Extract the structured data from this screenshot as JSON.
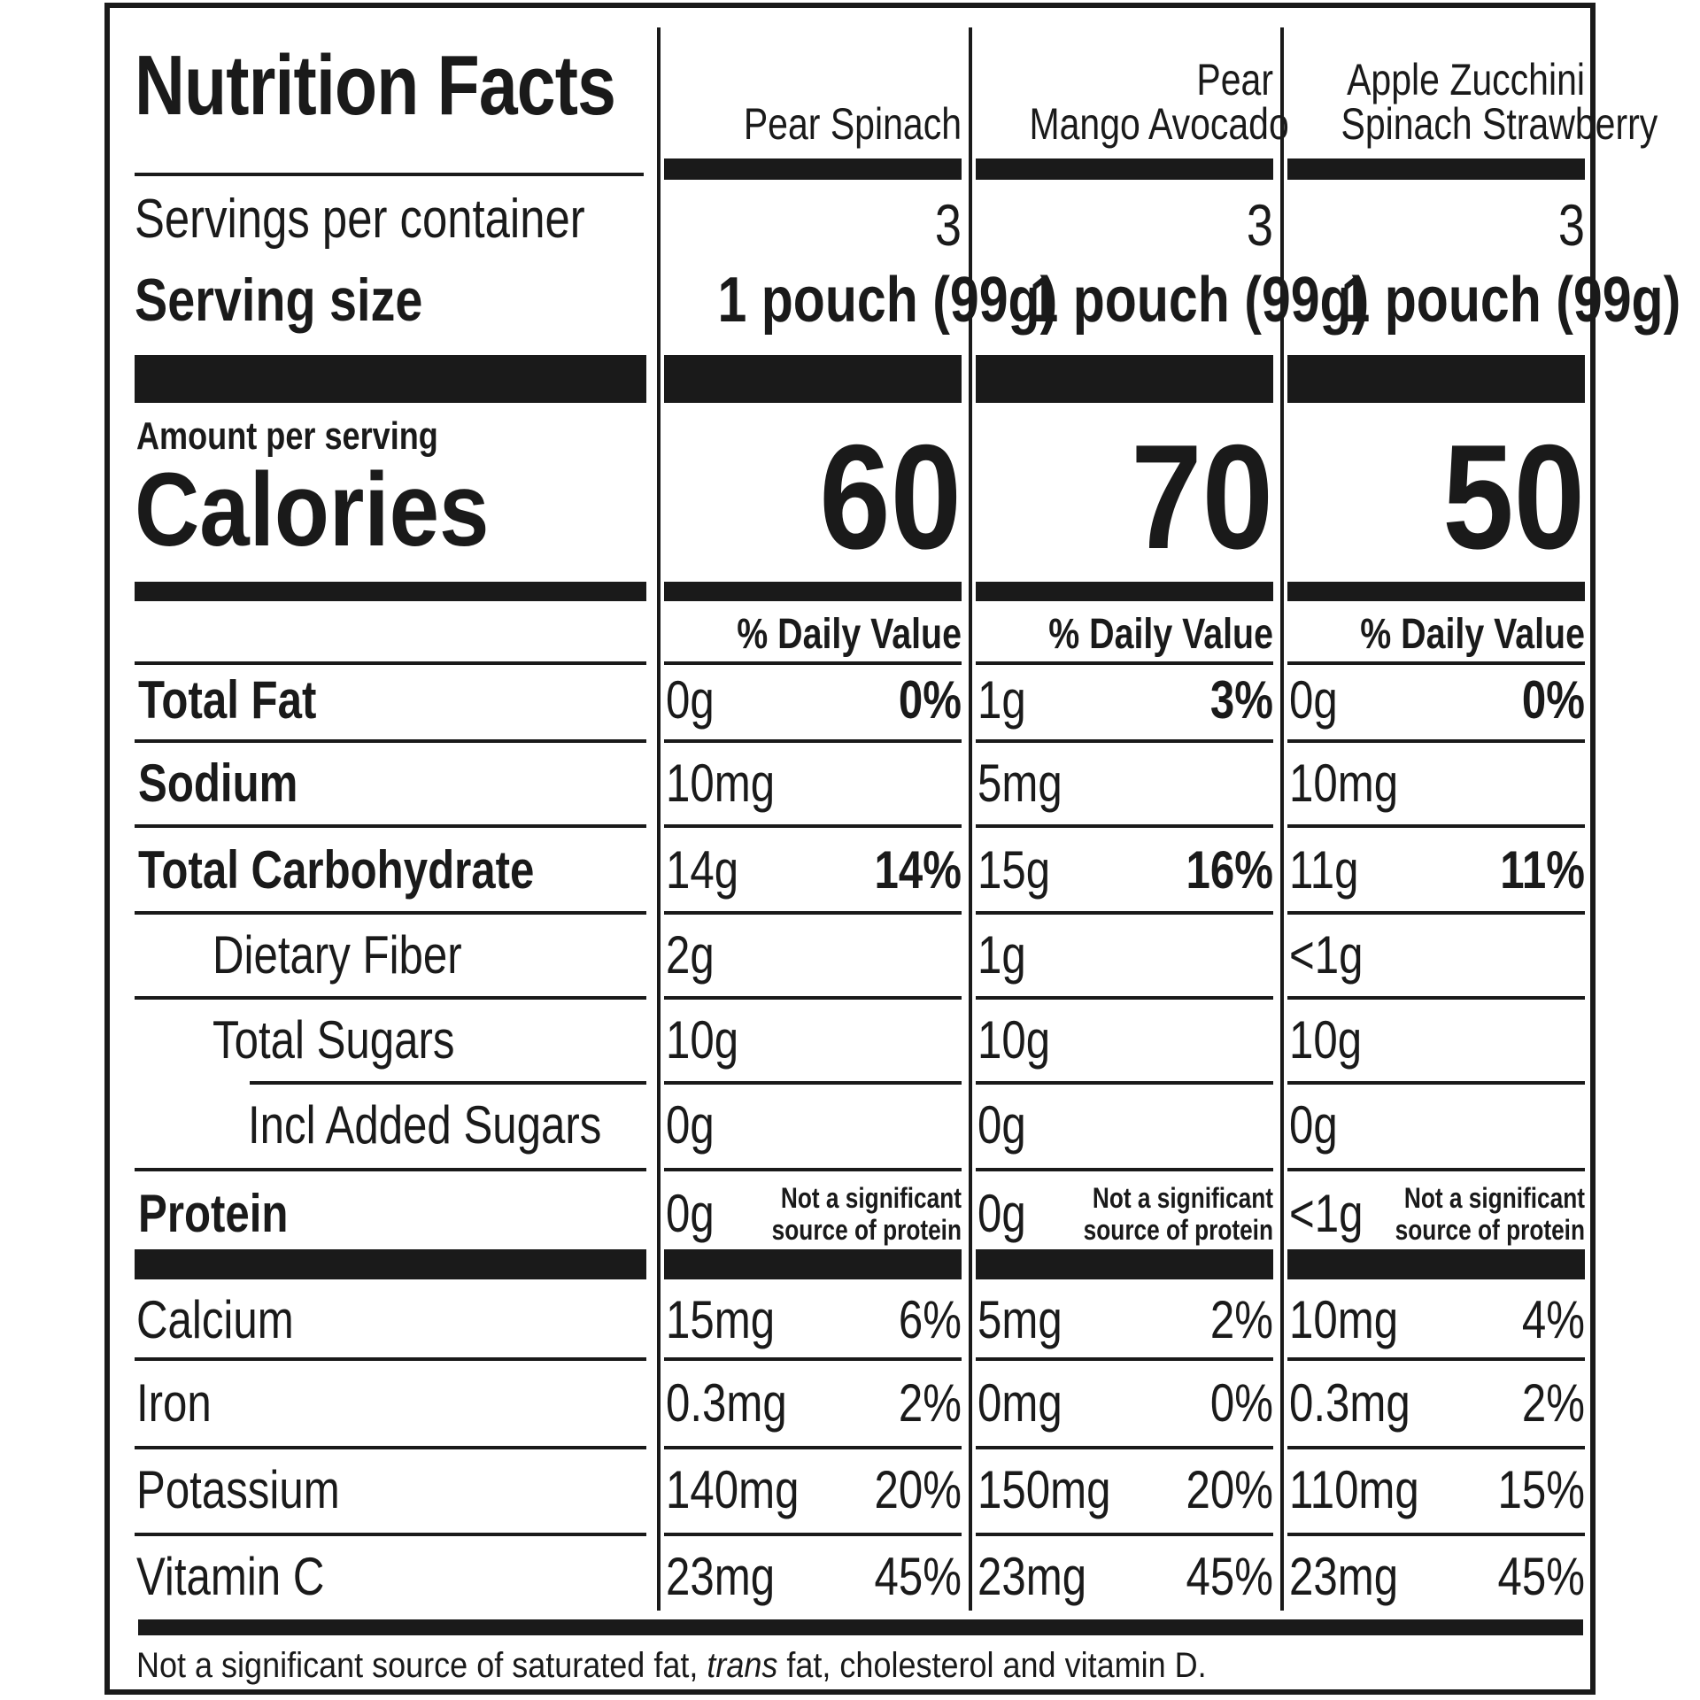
{
  "label": {
    "title": "Nutrition Facts",
    "servings_label": "Servings per container",
    "serving_size_label": "Serving size",
    "amount_per_serving": "Amount per serving",
    "calories_label": "Calories",
    "products": [
      {
        "name_line1": "",
        "name_line2": "Pear Spinach",
        "servings": "3",
        "serving_size": "1 pouch (99g)",
        "calories": "60",
        "dv_header": "% Daily Value",
        "total_fat": {
          "amount": "0g",
          "dv": "0%"
        },
        "sodium": {
          "amount": "10mg"
        },
        "total_carb": {
          "amount": "14g",
          "dv": "14%"
        },
        "fiber": {
          "amount": "2g"
        },
        "sugars": {
          "amount": "10g"
        },
        "added_sugars": {
          "amount": "0g"
        },
        "protein": {
          "amount": "0g",
          "note_line1": "Not a significant",
          "note_line2": "source of protein"
        },
        "calcium": {
          "amount": "15mg",
          "dv": "6%"
        },
        "iron": {
          "amount": "0.3mg",
          "dv": "2%"
        },
        "potassium": {
          "amount": "140mg",
          "dv": "20%"
        },
        "vitamin_c": {
          "amount": "23mg",
          "dv": "45%"
        }
      },
      {
        "name_line1": "Pear",
        "name_line2": "Mango Avocado",
        "servings": "3",
        "serving_size": "1 pouch (99g)",
        "calories": "70",
        "dv_header": "% Daily Value",
        "total_fat": {
          "amount": "1g",
          "dv": "3%"
        },
        "sodium": {
          "amount": "5mg"
        },
        "total_carb": {
          "amount": "15g",
          "dv": "16%"
        },
        "fiber": {
          "amount": "1g"
        },
        "sugars": {
          "amount": "10g"
        },
        "added_sugars": {
          "amount": "0g"
        },
        "protein": {
          "amount": "0g",
          "note_line1": "Not a significant",
          "note_line2": "source of protein"
        },
        "calcium": {
          "amount": "5mg",
          "dv": "2%"
        },
        "iron": {
          "amount": "0mg",
          "dv": "0%"
        },
        "potassium": {
          "amount": "150mg",
          "dv": "20%"
        },
        "vitamin_c": {
          "amount": "23mg",
          "dv": "45%"
        }
      },
      {
        "name_line1": "Apple Zucchini",
        "name_line2": "Spinach Strawberry",
        "servings": "3",
        "serving_size": "1 pouch (99g)",
        "calories": "50",
        "dv_header": "% Daily Value",
        "total_fat": {
          "amount": "0g",
          "dv": "0%"
        },
        "sodium": {
          "amount": "10mg"
        },
        "total_carb": {
          "amount": "11g",
          "dv": "11%"
        },
        "fiber": {
          "amount": "<1g"
        },
        "sugars": {
          "amount": "10g"
        },
        "added_sugars": {
          "amount": "0g"
        },
        "protein": {
          "amount": "<1g",
          "note_line1": "Not a significant",
          "note_line2": "source of protein"
        },
        "calcium": {
          "amount": "10mg",
          "dv": "4%"
        },
        "iron": {
          "amount": "0.3mg",
          "dv": "2%"
        },
        "potassium": {
          "amount": "110mg",
          "dv": "15%"
        },
        "vitamin_c": {
          "amount": "23mg",
          "dv": "45%"
        }
      }
    ],
    "nutrients": {
      "total_fat": "Total Fat",
      "sodium": "Sodium",
      "total_carb": "Total Carbohydrate",
      "fiber": "Dietary Fiber",
      "sugars": "Total Sugars",
      "added_sugars": "Incl Added Sugars",
      "protein": "Protein",
      "calcium": "Calcium",
      "iron": "Iron",
      "potassium": "Potassium",
      "vitamin_c": "Vitamin C"
    },
    "footnote_part1": "Not a significant source of saturated fat, ",
    "footnote_italic": "trans",
    "footnote_part2": " fat, cholesterol and vitamin D."
  }
}
